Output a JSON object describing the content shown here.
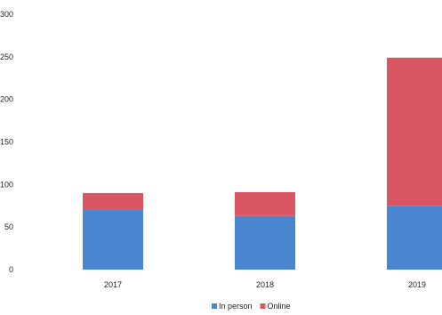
{
  "chart_data": {
    "type": "bar",
    "stacked": true,
    "categories": [
      "2017",
      "2018",
      "2019"
    ],
    "series": [
      {
        "name": "In person",
        "values": [
          71,
          63,
          75
        ],
        "color": "#4a86d0"
      },
      {
        "name": "Online",
        "values": [
          19,
          28,
          174
        ],
        "color": "#d95763"
      }
    ],
    "title": "",
    "xlabel": "",
    "ylabel": "",
    "ylim": [
      0,
      300
    ],
    "yticks": [
      "0",
      "50",
      "100",
      "150",
      "200",
      "250",
      "300"
    ],
    "grid": false,
    "legend_position": "bottom"
  }
}
